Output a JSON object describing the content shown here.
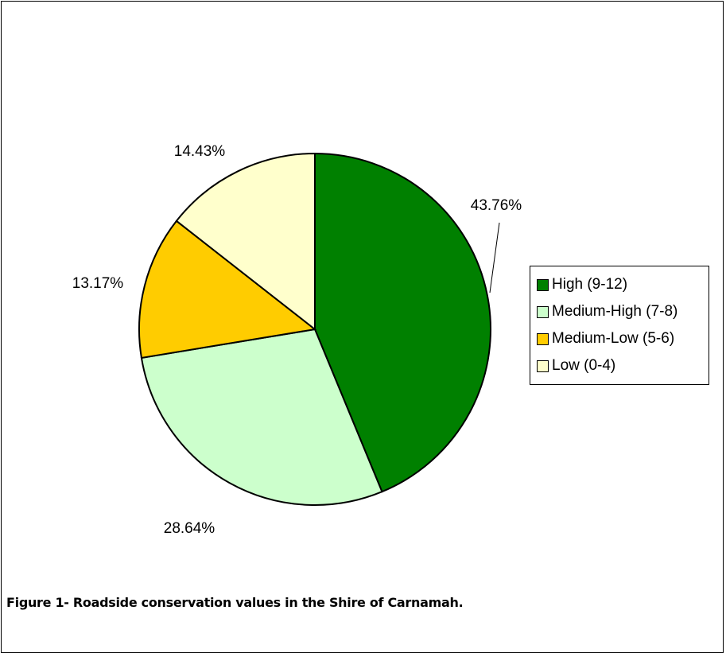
{
  "chart_data": {
    "type": "pie",
    "title": "",
    "categories": [
      "High (9-12)",
      "Medium-High (7-8)",
      "Medium-Low (5-6)",
      "Low (0-4)"
    ],
    "values": [
      43.76,
      28.64,
      13.17,
      14.43
    ],
    "data_labels": [
      "43.76%",
      "28.64%",
      "13.17%",
      "14.43%"
    ],
    "colors": [
      "#008000",
      "#CCFFCC",
      "#FFCC00",
      "#FFFFCC"
    ],
    "legend_position": "right",
    "start_angle": "12 o'clock",
    "direction": "clockwise"
  },
  "caption": "Figure 1- Roadside conservation values in the Shire of Carnamah."
}
